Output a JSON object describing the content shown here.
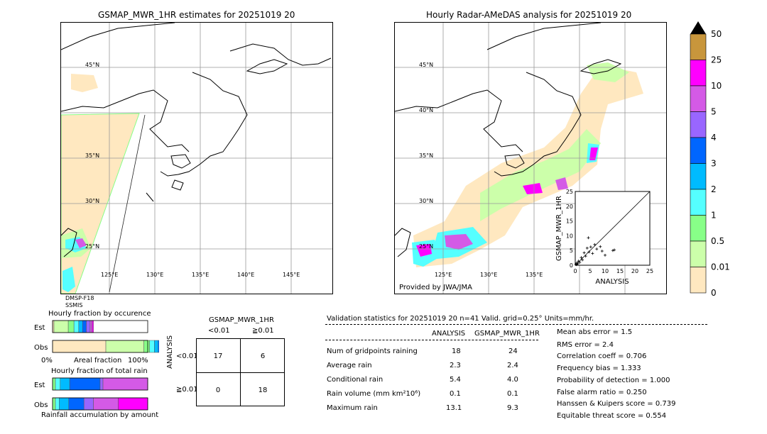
{
  "left_map": {
    "title": "GSMAP_MWR_1HR estimates for 20251019 20",
    "lat_labels": [
      "45°N",
      "40°N",
      "35°N",
      "30°N",
      "25°N"
    ],
    "lon_labels": [
      "125°E",
      "130°E",
      "135°E",
      "140°E",
      "145°E"
    ],
    "sensor_line1": "DMSP-F18",
    "sensor_line2": "SSMIS"
  },
  "right_map": {
    "title": "Hourly Radar-AMeDAS analysis for 20251019 20",
    "lat_labels": [
      "45°N",
      "40°N",
      "35°N",
      "30°N",
      "25°N"
    ],
    "lon_labels": [
      "125°E",
      "130°E",
      "135°E"
    ],
    "provider": "Provided by JWA/JMA"
  },
  "colorbar": {
    "labels": [
      "50",
      "25",
      "10",
      "5",
      "4",
      "3",
      "2",
      "1",
      "0.5",
      "0.01",
      "0"
    ],
    "colors": [
      "#c8963c",
      "#ff00ff",
      "#d45ae6",
      "#9966ff",
      "#0066ff",
      "#00bbff",
      "#55ffff",
      "#88ff88",
      "#ccffaa",
      "#ffe8c0"
    ],
    "over_color": "#000000"
  },
  "chart_data": [
    {
      "type": "scatter",
      "title": "",
      "xlabel": "ANALYSIS",
      "ylabel": "GSMAP_MWR_1HR",
      "xlim": [
        0,
        25
      ],
      "ylim": [
        0,
        25
      ],
      "x_ticks": [
        "0",
        "5",
        "10",
        "15",
        "20",
        "25"
      ],
      "y_ticks": [
        "0",
        "5",
        "10",
        "15",
        "20",
        "25"
      ],
      "reference_line": "y=x",
      "points": [
        [
          0.2,
          0.3
        ],
        [
          0.4,
          0.2
        ],
        [
          0.6,
          0.8
        ],
        [
          0.9,
          0.5
        ],
        [
          1.1,
          1.4
        ],
        [
          1.5,
          1.0
        ],
        [
          2.0,
          2.6
        ],
        [
          2.4,
          1.8
        ],
        [
          3.0,
          4.2
        ],
        [
          3.5,
          3.1
        ],
        [
          4.0,
          5.8
        ],
        [
          4.6,
          4.5
        ],
        [
          5.2,
          6.2
        ],
        [
          5.8,
          4.0
        ],
        [
          6.5,
          7.0
        ],
        [
          7.2,
          5.5
        ],
        [
          8.4,
          6.3
        ],
        [
          9.0,
          4.8
        ],
        [
          4.4,
          9.3
        ],
        [
          10.0,
          3.4
        ],
        [
          12.6,
          5.0
        ],
        [
          13.1,
          5.2
        ]
      ]
    },
    {
      "type": "bar",
      "title": "Hourly fraction by occurence",
      "categories": [
        "Est",
        "Obs"
      ],
      "x_ticks": [
        "0%",
        "Areal fraction",
        "100%"
      ],
      "series": [
        {
          "color": "#ffe8c0",
          "values": [
            0.015,
            0.56
          ]
        },
        {
          "color": "#ccffaa",
          "values": [
            0.15,
            0.4
          ]
        },
        {
          "color": "#88ff88",
          "values": [
            0.06,
            0.06
          ]
        },
        {
          "color": "#55ffff",
          "values": [
            0.05,
            0.05
          ]
        },
        {
          "color": "#00bbff",
          "values": [
            0.04,
            0.04
          ]
        },
        {
          "color": "#0066ff",
          "values": [
            0.04,
            0.04
          ]
        },
        {
          "color": "#9966ff",
          "values": [
            0.04,
            0.03
          ]
        },
        {
          "color": "#d45ae6",
          "values": [
            0.02,
            0.02
          ]
        },
        {
          "color": "#ff00ff",
          "values": [
            0.015,
            0.01
          ]
        }
      ]
    },
    {
      "type": "bar",
      "title": "Hourly fraction of total rain",
      "categories": [
        "Est",
        "Obs"
      ],
      "footer": "Rainfall accumulation by amount",
      "series": [
        {
          "color": "#88ff88",
          "values": [
            0.03,
            0.03
          ]
        },
        {
          "color": "#55ffff",
          "values": [
            0.05,
            0.04
          ]
        },
        {
          "color": "#00bbff",
          "values": [
            0.1,
            0.1
          ]
        },
        {
          "color": "#0066ff",
          "values": [
            0.32,
            0.16
          ]
        },
        {
          "color": "#9966ff",
          "values": [
            0.03,
            0.1
          ]
        },
        {
          "color": "#d45ae6",
          "values": [
            0.47,
            0.26
          ]
        },
        {
          "color": "#ff00ff",
          "values": [
            0.0,
            0.31
          ]
        }
      ]
    }
  ],
  "contingency": {
    "title": "GSMAP_MWR_1HR",
    "col_labels": [
      "<0.01",
      "≧0.01"
    ],
    "row_labels": [
      "<0.01",
      "≧0.01"
    ],
    "axis_label": "ANALYSIS",
    "cells": [
      [
        "17",
        "6"
      ],
      [
        "0",
        "18"
      ]
    ]
  },
  "validation": {
    "header": "Validation statistics for 20251019 20  n=41 Valid. grid=0.25° Units=mm/hr.",
    "col_analysis": "ANALYSIS",
    "col_gsmap": "GSMAP_MWR_1HR",
    "rows": [
      {
        "label": "Num of gridpoints raining",
        "analysis": "18",
        "gsmap": "24"
      },
      {
        "label": "Average rain",
        "analysis": "2.3",
        "gsmap": "2.4"
      },
      {
        "label": "Conditional rain",
        "analysis": "5.4",
        "gsmap": "4.0"
      },
      {
        "label": "Rain volume (mm km²10⁶)",
        "analysis": "0.1",
        "gsmap": "0.1"
      },
      {
        "label": "Maximum rain",
        "analysis": "13.1",
        "gsmap": "9.3"
      }
    ],
    "scores": [
      "Mean abs error =    1.5",
      "RMS error =    2.4",
      "Correlation coeff =  0.706",
      "Frequency bias =  1.333",
      "Probability of detection =  1.000",
      "False alarm ratio =  0.250",
      "Hanssen & Kuipers score =  0.739",
      "Equitable threat score =  0.554"
    ]
  }
}
